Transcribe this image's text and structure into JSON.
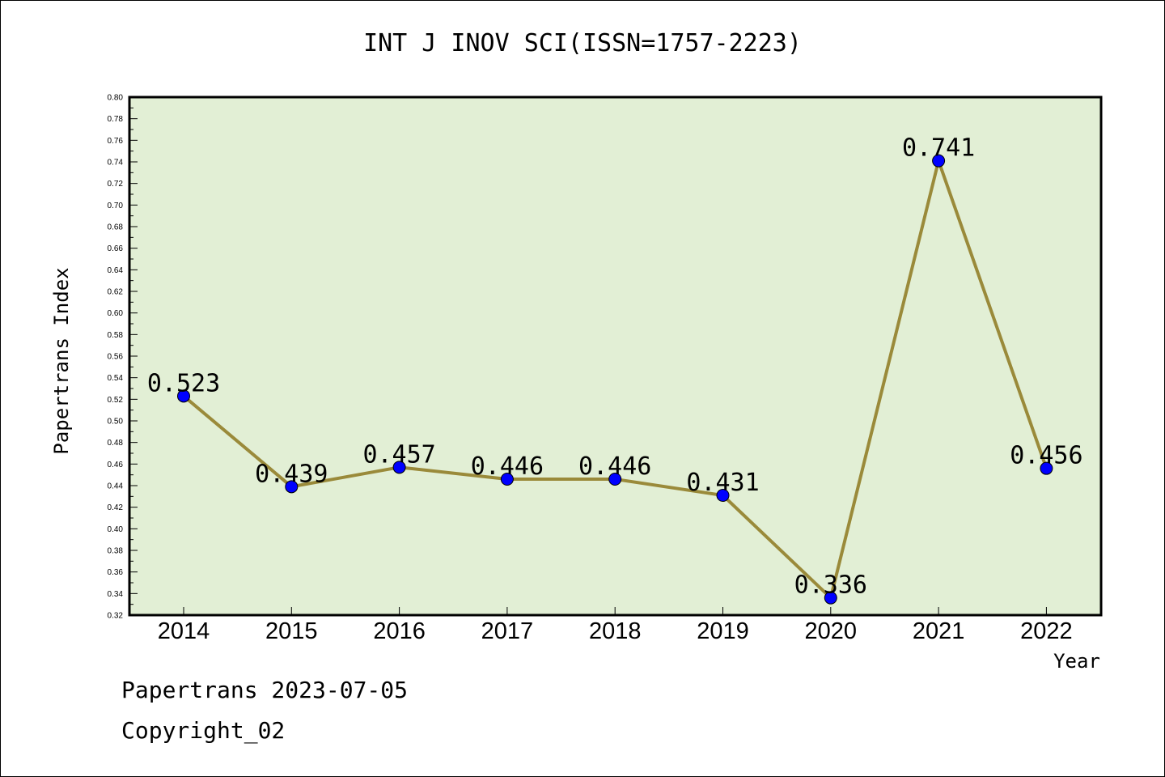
{
  "chart_data": {
    "type": "line",
    "title": "INT J INOV SCI(ISSN=1757-2223)",
    "xlabel": "Year",
    "ylabel": "Papertrans Index",
    "categories": [
      "2014",
      "2015",
      "2016",
      "2017",
      "2018",
      "2019",
      "2020",
      "2021",
      "2022"
    ],
    "series": [
      {
        "values": [
          0.523,
          0.439,
          0.457,
          0.446,
          0.446,
          0.431,
          0.336,
          0.741,
          0.456
        ]
      }
    ],
    "data_labels": [
      "0.523",
      "0.439",
      "0.457",
      "0.446",
      "0.446",
      "0.431",
      "0.336",
      "0.741",
      "0.456"
    ],
    "ylim": [
      0.32,
      0.8
    ],
    "yticks": [
      "0.32",
      "0.34",
      "0.36",
      "0.38",
      "0.40",
      "0.42",
      "0.44",
      "0.46",
      "0.48",
      "0.50",
      "0.52",
      "0.54",
      "0.56",
      "0.58",
      "0.60",
      "0.62",
      "0.64",
      "0.66",
      "0.68",
      "0.70",
      "0.72",
      "0.74",
      "0.76",
      "0.78",
      "0.80"
    ],
    "grid": false,
    "colors": {
      "line": "#9a8a3a",
      "marker": "#0000ff",
      "plot_background": "#e2efd5"
    }
  },
  "footer": {
    "line1": "Papertrans 2023-07-05",
    "line2": "Copyright_02"
  }
}
